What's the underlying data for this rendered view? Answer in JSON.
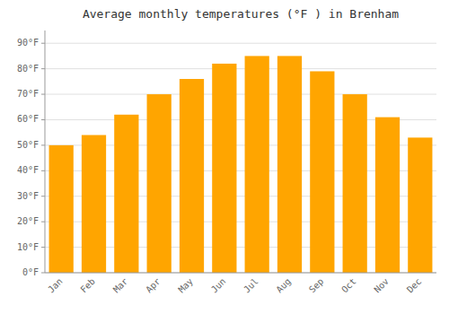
{
  "chart_data": {
    "type": "bar",
    "title": "Average monthly temperatures (°F ) in Brenham",
    "categories": [
      "Jan",
      "Feb",
      "Mar",
      "Apr",
      "May",
      "Jun",
      "Jul",
      "Aug",
      "Sep",
      "Oct",
      "Nov",
      "Dec"
    ],
    "values": [
      50,
      54,
      62,
      70,
      76,
      82,
      85,
      85,
      79,
      70,
      61,
      53
    ],
    "color": "#FFA500",
    "ylim": [
      0,
      95
    ],
    "yticks": [
      {
        "value": 0,
        "label": "0°F"
      },
      {
        "value": 10,
        "label": "10°F"
      },
      {
        "value": 20,
        "label": "20°F"
      },
      {
        "value": 30,
        "label": "30°F"
      },
      {
        "value": 40,
        "label": "40°F"
      },
      {
        "value": 50,
        "label": "50°F"
      },
      {
        "value": 60,
        "label": "60°F"
      },
      {
        "value": 70,
        "label": "70°F"
      },
      {
        "value": 80,
        "label": "80°F"
      },
      {
        "value": 90,
        "label": "90°F"
      }
    ],
    "grid": true
  }
}
